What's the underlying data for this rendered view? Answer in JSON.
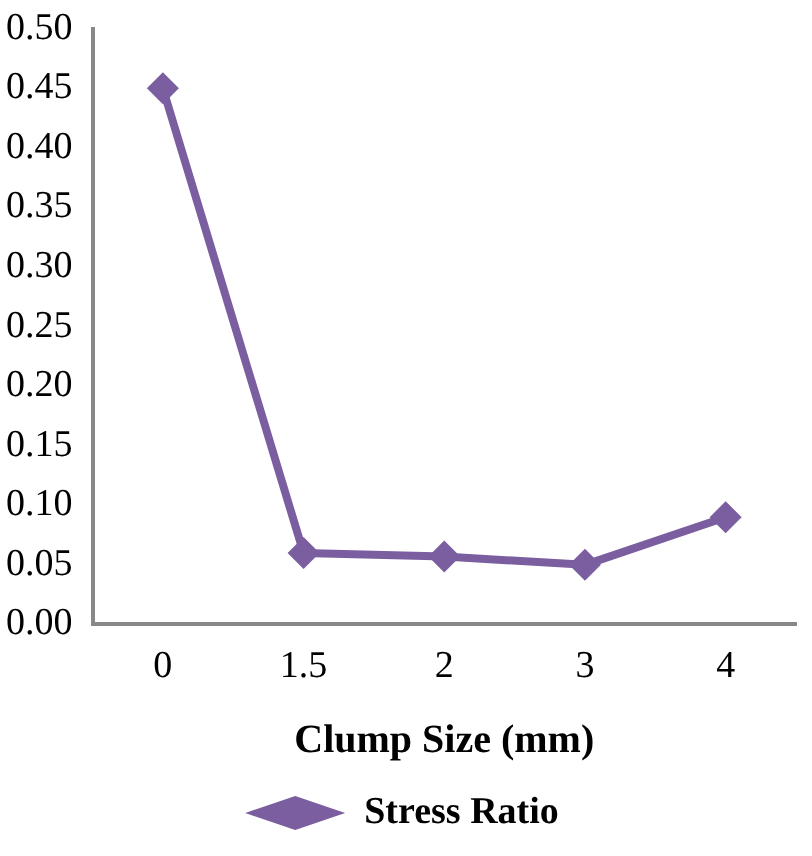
{
  "chart_data": {
    "type": "line",
    "xlabel": "Clump Size (mm)",
    "categories": [
      "0",
      "1.5",
      "2",
      "3",
      "4"
    ],
    "series": [
      {
        "name": "Stress Ratio",
        "color": "#7b5ea0",
        "values": [
          0.45,
          0.06,
          0.057,
          0.05,
          0.09
        ]
      }
    ],
    "ylim": [
      0,
      0.5
    ],
    "yticks": [
      {
        "value": 0,
        "label": "0.00"
      },
      {
        "value": 0.05,
        "label": "0.05"
      },
      {
        "value": 0.1,
        "label": "0.10"
      },
      {
        "value": 0.15,
        "label": "0.15"
      },
      {
        "value": 0.2,
        "label": "0.20"
      },
      {
        "value": 0.25,
        "label": "0.25"
      },
      {
        "value": 0.3,
        "label": "0.30"
      },
      {
        "value": 0.35,
        "label": "0.35"
      },
      {
        "value": 0.4,
        "label": "0.40"
      },
      {
        "value": 0.45,
        "label": "0.45"
      },
      {
        "value": 0.5,
        "label": "0.50"
      }
    ],
    "grid": false,
    "legend": "bottom",
    "marker": "diamond",
    "line_style": "solid"
  }
}
